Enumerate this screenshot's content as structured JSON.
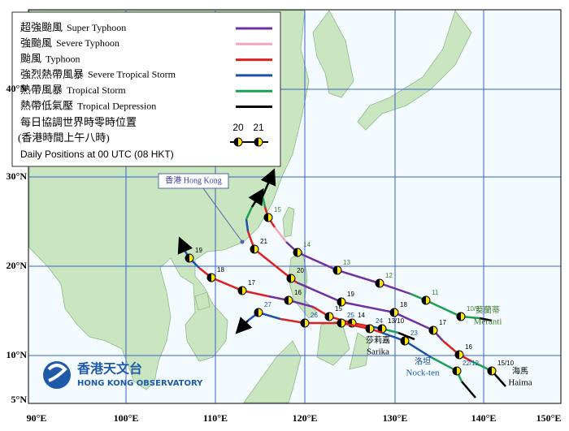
{
  "legend": {
    "items": [
      {
        "zh": "超強颱風",
        "en": "Super Typhoon",
        "color": "#7030a0"
      },
      {
        "zh": "強颱風",
        "en": "Severe Typhoon",
        "color": "#f4a7b9"
      },
      {
        "zh": "颱風",
        "en": "Typhoon",
        "color": "#e02020"
      },
      {
        "zh": "強烈熱帶風暴",
        "en": "Severe Tropical Storm",
        "color": "#1f4fa8"
      },
      {
        "zh": "熱帶風暴",
        "en": "Tropical Storm",
        "color": "#1aa050"
      },
      {
        "zh": "熱帶低氣壓",
        "en": "Tropical Depression",
        "color": "#000000"
      }
    ],
    "daily_zh_1": "每日協調世界時零時位置",
    "daily_zh_2": "(香港時間上午八時)",
    "daily_en": "Daily Positions at 00 UTC (08 HKT)",
    "sample_labels": [
      "20",
      "21"
    ]
  },
  "axes": {
    "x_labels": [
      "90°E",
      "100°E",
      "110°E",
      "120°E",
      "130°E",
      "140°E",
      "150°E"
    ],
    "y_labels": [
      "40°N",
      "30°N",
      "20°N",
      "10°N",
      "5°N"
    ]
  },
  "hong_kong_label": "香港  Hong Kong",
  "storms": [
    {
      "name_zh": "莫蘭蒂",
      "name_en": "Meranti",
      "positions": [
        "10/9",
        "11",
        "12",
        "13",
        "14",
        "15"
      ]
    },
    {
      "name_zh": "海馬",
      "name_en": "Haima",
      "positions": [
        "15/10",
        "16",
        "17",
        "18",
        "19",
        "20",
        "21"
      ]
    },
    {
      "name_zh": "莎莉嘉",
      "name_en": "Sarika",
      "positions": [
        "13/10",
        "14",
        "15",
        "16",
        "17",
        "18",
        "19"
      ]
    },
    {
      "name_zh": "洛坦",
      "name_en": "Nock-ten",
      "positions": [
        "22/12",
        "23",
        "24",
        "25",
        "26",
        "27"
      ]
    }
  ],
  "logo": {
    "zh": "香港天文台",
    "en": "HONG KONG OBSERVATORY"
  }
}
